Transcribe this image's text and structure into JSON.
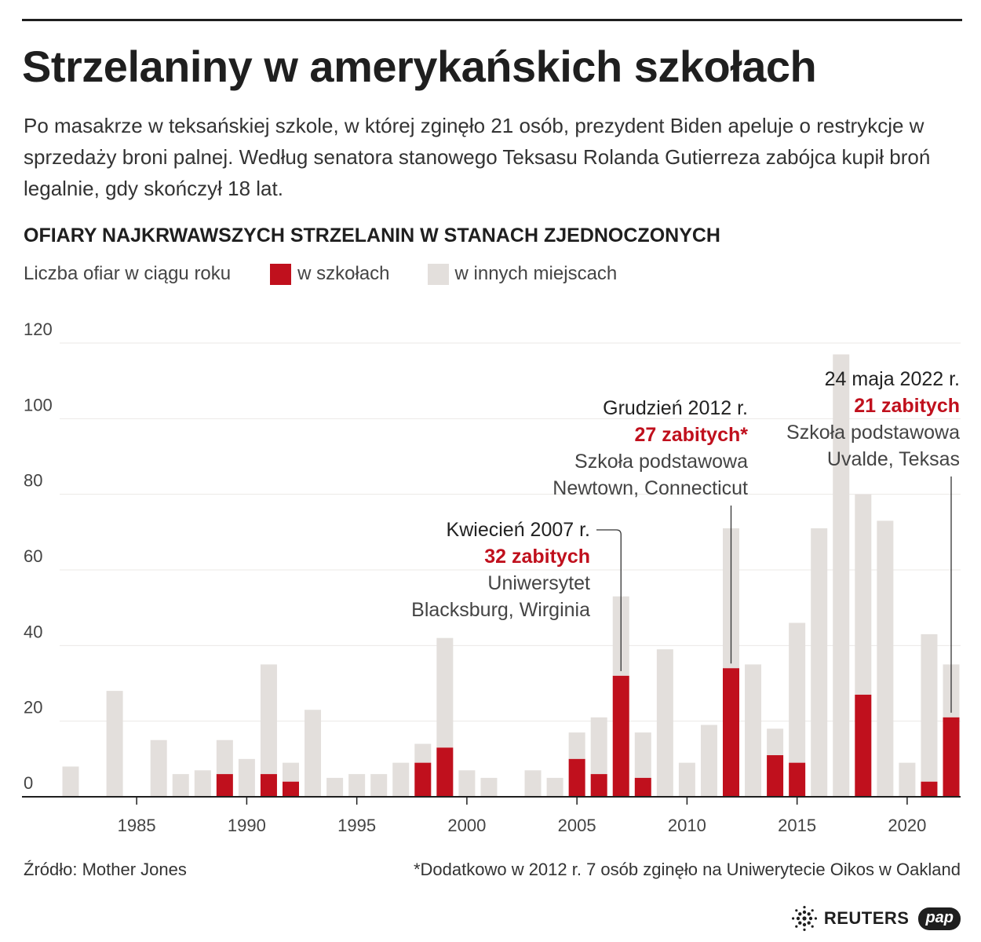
{
  "header": {
    "title": "Strzelaniny w amerykańskich szkołach",
    "intro": "Po masakrze w teksańskiej szkole, w której zginęło 21 osób, prezydent Biden apeluje o restrykcje w sprzedaży broni palnej. Według senatora stanowego Teksasu Rolanda Gutierreza zabójca kupił broń legalnie, gdy skończył 18 lat.",
    "subtitle": "OFIARY NAJKRWAWSZYCH STRZELANIN W STANACH ZJEDNOCZONYCH"
  },
  "legend": {
    "note": "Liczba ofiar w ciągu roku",
    "items": [
      {
        "label": "w szkołach",
        "color": "#c0101d"
      },
      {
        "label": "w innych miejscach",
        "color": "#e3dfdc"
      }
    ]
  },
  "footer": {
    "source": "Źródło: Mother Jones",
    "note": "*Dodatkowo w 2012 r. 7 osób zginęło na Uniwerytecie Oikos w Oakland",
    "logo_reuters": "REUTERS",
    "logo_pap": "pap"
  },
  "chart_data": {
    "type": "bar",
    "stacked": true,
    "ylabel": "Liczba ofiar w ciągu roku",
    "ylim": [
      0,
      120
    ],
    "yticks": [
      0,
      20,
      40,
      60,
      80,
      100,
      120
    ],
    "xticks": [
      1985,
      1990,
      1995,
      2000,
      2005,
      2010,
      2015,
      2020
    ],
    "x": [
      1982,
      1983,
      1984,
      1985,
      1986,
      1987,
      1988,
      1989,
      1990,
      1991,
      1992,
      1993,
      1994,
      1995,
      1996,
      1997,
      1998,
      1999,
      2000,
      2001,
      2002,
      2003,
      2004,
      2005,
      2006,
      2007,
      2008,
      2009,
      2010,
      2011,
      2012,
      2013,
      2014,
      2015,
      2016,
      2017,
      2018,
      2019,
      2020,
      2021,
      2022
    ],
    "series": [
      {
        "name": "w szkołach",
        "color": "#c0101d",
        "values": [
          0,
          0,
          0,
          0,
          0,
          0,
          0,
          6,
          0,
          6,
          4,
          0,
          0,
          0,
          0,
          0,
          9,
          13,
          0,
          0,
          0,
          0,
          0,
          10,
          6,
          32,
          5,
          0,
          0,
          0,
          34,
          0,
          11,
          9,
          0,
          0,
          27,
          0,
          0,
          4,
          21
        ]
      },
      {
        "name": "w innych miejscach",
        "color": "#e3dfdc",
        "values": [
          8,
          0,
          28,
          0,
          15,
          6,
          7,
          9,
          10,
          29,
          5,
          23,
          5,
          6,
          6,
          9,
          5,
          29,
          7,
          5,
          0,
          7,
          5,
          7,
          15,
          21,
          12,
          39,
          9,
          19,
          37,
          35,
          7,
          37,
          71,
          117,
          53,
          73,
          9,
          39,
          14
        ]
      }
    ],
    "annotations": [
      {
        "x": 2007,
        "lines": [
          "Kwiecień 2007 r.",
          "32 zabitych",
          "Uniwersytet",
          "Blacksburg, Wirginia"
        ],
        "highlight": 1
      },
      {
        "x": 2012,
        "lines": [
          "Grudzień 2012 r.",
          "27 zabitych*",
          "Szkoła podstawowa",
          "Newtown, Connecticut"
        ],
        "highlight": 1
      },
      {
        "x": 2022,
        "lines": [
          "24 maja 2022 r.",
          "21 zabitych",
          "Szkoła podstawowa",
          "Uvalde, Teksas"
        ],
        "highlight": 1
      }
    ]
  }
}
